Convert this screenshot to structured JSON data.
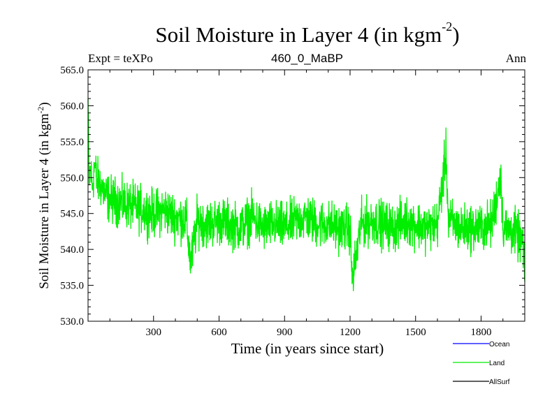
{
  "chart_data": {
    "type": "line",
    "title": "Soil Moisture in Layer 4 (in kgm",
    "title_sup": "-2",
    "title_end": ")",
    "subtitle_left": "Expt = teXPo",
    "subtitle_center": "460_0_MaBP",
    "subtitle_right": "Ann",
    "xlabel": "Time (in years since start)",
    "ylabel": "Soil Moisture in Layer 4 (in kgm",
    "ylabel_sup": "-2",
    "ylabel_end": ")",
    "xlim": [
      0,
      2000
    ],
    "ylim": [
      530.0,
      565.0
    ],
    "xticks": [
      300,
      600,
      900,
      1200,
      1500,
      1800
    ],
    "xtick_labels": [
      "300",
      "600",
      "900",
      "1200",
      "1500",
      "1800"
    ],
    "yticks": [
      530,
      535,
      540,
      545,
      550,
      555,
      560,
      565
    ],
    "ytick_labels": [
      "530.0",
      "535.0",
      "540.0",
      "545.0",
      "550.0",
      "555.0",
      "560.0",
      "565.0"
    ],
    "legend": [
      {
        "name": "Ocean",
        "color": "#0000ff"
      },
      {
        "name": "Land",
        "color": "#00ee00"
      },
      {
        "name": "AllSurf",
        "color": "#000000"
      }
    ],
    "series": [
      {
        "name": "Land",
        "color": "#00ee00",
        "note": "noisy annual series; key points (x years, y kgm-2)",
        "x": [
          0,
          5,
          10,
          20,
          30,
          40,
          60,
          80,
          100,
          150,
          200,
          250,
          300,
          350,
          400,
          450,
          470,
          500,
          550,
          600,
          650,
          700,
          750,
          800,
          850,
          900,
          950,
          1000,
          1050,
          1100,
          1150,
          1200,
          1210,
          1250,
          1300,
          1350,
          1400,
          1450,
          1500,
          1550,
          1600,
          1640,
          1650,
          1700,
          1750,
          1800,
          1850,
          1890,
          1900,
          1950,
          1990,
          2000
        ],
        "y": [
          561.0,
          549.0,
          551.5,
          548.5,
          552.0,
          549.5,
          549.0,
          547.5,
          547.0,
          546.5,
          546.0,
          545.5,
          545.0,
          545.5,
          544.5,
          544.0,
          538.0,
          544.0,
          543.5,
          544.0,
          543.5,
          543.0,
          544.5,
          543.0,
          543.5,
          543.0,
          544.0,
          544.5,
          543.5,
          543.5,
          543.0,
          543.0,
          535.5,
          543.5,
          544.0,
          543.5,
          543.0,
          544.0,
          543.5,
          543.0,
          543.5,
          553.5,
          544.0,
          543.0,
          543.0,
          543.0,
          543.5,
          550.5,
          543.0,
          542.5,
          541.0,
          535.5
        ]
      }
    ]
  }
}
